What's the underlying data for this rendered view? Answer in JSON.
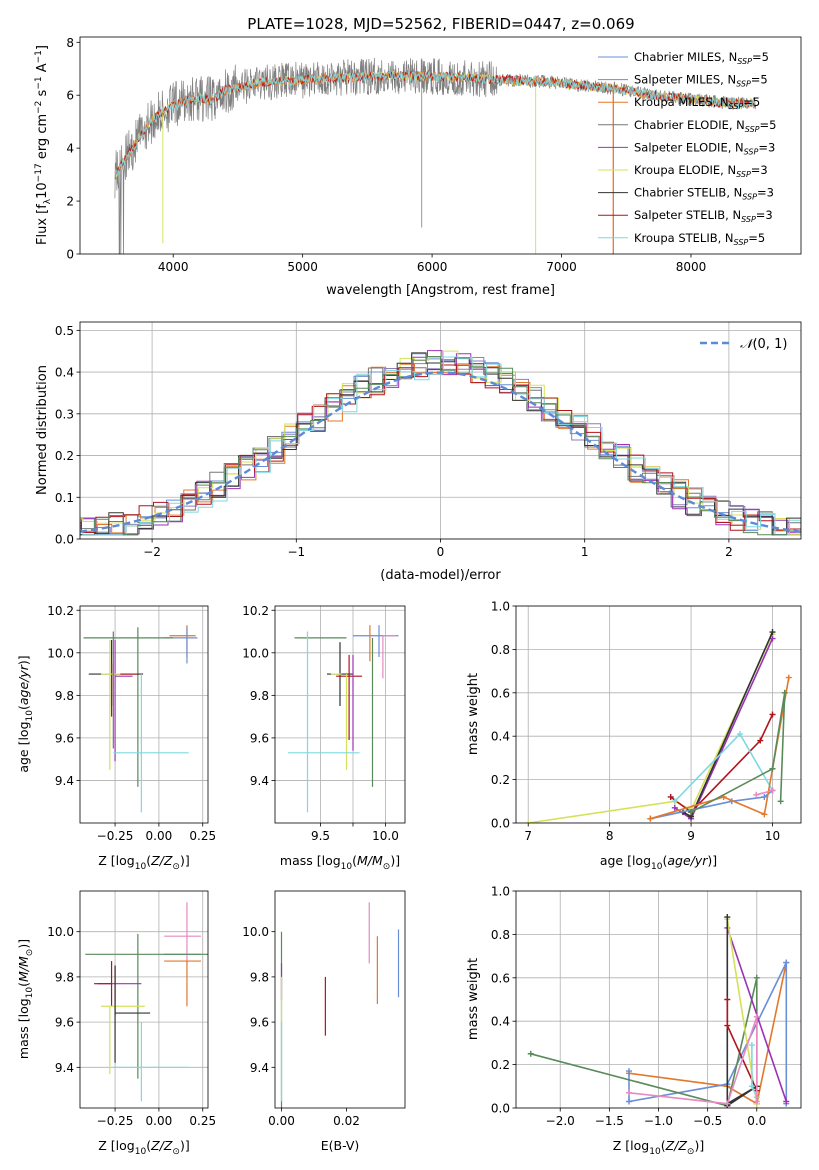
{
  "figure": {
    "title": "PLATE=1028, MJD=52562, FIBERID=0447, z=0.069"
  },
  "model_colors": {
    "Chabrier MILES": "#6a8fd8",
    "Salpeter MILES": "#8d7fb8",
    "Kroupa MILES": "#e3782b",
    "Chabrier ELODIE": "#777777",
    "Salpeter ELODIE": "#9b32b5",
    "Kroupa ELODIE": "#d4e25a",
    "Chabrier STELIB": "#333333",
    "Salpeter STELIB": "#b0141c",
    "Kroupa STELIB": "#7fd8e2",
    "extra_green": "#5a8a5a",
    "extra_pink": "#e889c0"
  },
  "chart_data": [
    {
      "id": "spectrum",
      "type": "line",
      "ylabel_main": "Flux [f",
      "ylabel_tail": "10",
      "ylabel_unit": " erg cm",
      "ylabel_unit2": " s",
      "ylabel_unit3": " A",
      "xlabel": "wavelength [Angstrom, rest frame]",
      "xlim": [
        3280,
        8850
      ],
      "ylim": [
        0,
        8.2
      ],
      "xticks": [
        "4000",
        "5000",
        "6000",
        "7000",
        "8000"
      ],
      "yticks": [
        "0",
        "2",
        "4",
        "6",
        "8"
      ],
      "continuum": {
        "x": [
          3550,
          3620,
          3700,
          3800,
          3900,
          4000,
          4100,
          4200,
          4300,
          4400,
          4500,
          4700,
          4900,
          5100,
          5300,
          5500,
          5700,
          5900,
          6100,
          6300,
          6500,
          6700,
          6900,
          7100,
          7300,
          7500,
          7700,
          7900,
          8100,
          8300,
          8500
        ],
        "y": [
          3.0,
          3.5,
          4.1,
          4.9,
          5.3,
          5.6,
          5.8,
          5.9,
          5.8,
          6.2,
          6.3,
          6.5,
          6.55,
          6.6,
          6.65,
          6.7,
          6.75,
          6.7,
          6.7,
          6.65,
          6.6,
          6.55,
          6.5,
          6.4,
          6.3,
          6.2,
          6.0,
          5.9,
          5.8,
          5.7,
          5.7
        ]
      },
      "legend": [
        {
          "imf": "Chabrier",
          "lib": "MILES",
          "n": "5"
        },
        {
          "imf": "Salpeter",
          "lib": "MILES",
          "n": "5"
        },
        {
          "imf": "Kroupa",
          "lib": "MILES",
          "n": "5"
        },
        {
          "imf": "Chabrier",
          "lib": "ELODIE",
          "n": "5"
        },
        {
          "imf": "Salpeter",
          "lib": "ELODIE",
          "n": "3"
        },
        {
          "imf": "Kroupa",
          "lib": "ELODIE",
          "n": "3"
        },
        {
          "imf": "Chabrier",
          "lib": "STELIB",
          "n": "3"
        },
        {
          "imf": "Salpeter",
          "lib": "STELIB",
          "n": "3"
        },
        {
          "imf": "Kroupa",
          "lib": "STELIB",
          "n": "5"
        }
      ],
      "legend_placement": "upper right"
    },
    {
      "id": "residuals",
      "type": "histogram",
      "xlabel": "(data-model)/error",
      "ylabel": "Normed distribution",
      "xlim": [
        -2.5,
        2.5
      ],
      "ylim": [
        0,
        0.52
      ],
      "xticks": [
        "−2",
        "−1",
        "0",
        "1",
        "2"
      ],
      "yticks": [
        "0.0",
        "0.1",
        "0.2",
        "0.3",
        "0.4",
        "0.5"
      ],
      "grid": true,
      "reference_label": "N(0, 1)",
      "legend_placement": "upper right"
    },
    {
      "id": "age_vs_Z",
      "type": "errorbar",
      "xlabel": "Z [log",
      "ylabel": "age  [log",
      "xlim": [
        -0.45,
        0.28
      ],
      "ylim": [
        9.2,
        10.22
      ],
      "xticks": [
        "−0.25",
        "0.00",
        "0.25"
      ],
      "yticks": [
        "9.4",
        "9.6",
        "9.8",
        "10.0",
        "10.2"
      ],
      "points": [
        {
          "x": 0.16,
          "xerr": [
            0.1,
            0.05
          ],
          "y": 10.08,
          "yerr": [
            0.1,
            0.05
          ],
          "c": "Kroupa MILES"
        },
        {
          "x": 0.16,
          "xerr": [
            0.13,
            0.06
          ],
          "y": 10.07,
          "yerr": [
            0.12,
            0.05
          ],
          "c": "Chabrier MILES"
        },
        {
          "x": -0.12,
          "xerr": [
            0.31,
            0.2
          ],
          "y": 10.07,
          "yerr": [
            0.7,
            0.05
          ],
          "c": "extra_green"
        },
        {
          "x": -0.27,
          "xerr": [
            0.13,
            0.18
          ],
          "y": 9.9,
          "yerr": [
            0.15,
            0.16
          ],
          "c": "Chabrier STELIB"
        },
        {
          "x": -0.27,
          "xerr": [
            0.0,
            0.15
          ],
          "y": 9.9,
          "yerr": [
            0.2,
            0.05
          ],
          "c": "Salpeter STELIB"
        },
        {
          "x": -0.25,
          "xerr": [
            0.0,
            0.1
          ],
          "y": 9.89,
          "yerr": [
            0.4,
            0.17
          ],
          "c": "Salpeter ELODIE"
        },
        {
          "x": -0.28,
          "xerr": [
            0.05,
            0.06
          ],
          "y": 9.9,
          "yerr": [
            0.45,
            0.16
          ],
          "c": "Kroupa ELODIE"
        },
        {
          "x": -0.26,
          "xerr": [
            0.0,
            0.0
          ],
          "y": 9.9,
          "yerr": [
            0.35,
            0.2
          ],
          "c": "Chabrier ELODIE"
        },
        {
          "x": -0.26,
          "xerr": [
            0.0,
            0.43
          ],
          "y": 9.53,
          "yerr": [
            0.0,
            0.0
          ],
          "c": "Kroupa STELIB"
        },
        {
          "x": -0.1,
          "xerr": [
            0.0,
            0.0
          ],
          "y": 9.9,
          "yerr": [
            0.65,
            0.0
          ],
          "c": "Kroupa STELIB"
        }
      ]
    },
    {
      "id": "age_vs_mass",
      "type": "errorbar",
      "xlabel": "mass [log",
      "ylim": [
        9.2,
        10.22
      ],
      "xlim": [
        9.15,
        10.15
      ],
      "xticks": [
        "9.5",
        "9.75",
        "10.0"
      ],
      "xtick_labels": [
        "9.5",
        "",
        "10.0"
      ],
      "yticks": [
        "9.4",
        "9.6",
        "9.8",
        "10.0",
        "10.2"
      ],
      "points": [
        {
          "x": 9.95,
          "xerr": [
            0.2,
            0.15
          ],
          "y": 10.08,
          "yerr": [
            0.1,
            0.05
          ],
          "c": "Chabrier MILES"
        },
        {
          "x": 9.98,
          "xerr": [
            0.0,
            0.1
          ],
          "y": 10.08,
          "yerr": [
            0.2,
            0.0
          ],
          "c": "extra_pink"
        },
        {
          "x": 9.88,
          "xerr": [
            0.0,
            0.0
          ],
          "y": 10.08,
          "yerr": [
            0.12,
            0.05
          ],
          "c": "Kroupa MILES"
        },
        {
          "x": 9.7,
          "xerr": [
            0.4,
            0.0
          ],
          "y": 10.07,
          "yerr": [
            0.0,
            0.0
          ],
          "c": "extra_green"
        },
        {
          "x": 9.9,
          "xerr": [
            0.0,
            0.0
          ],
          "y": 10.07,
          "yerr": [
            0.7,
            0.0
          ],
          "c": "extra_green"
        },
        {
          "x": 9.65,
          "xerr": [
            0.1,
            0.1
          ],
          "y": 9.9,
          "yerr": [
            0.15,
            0.15
          ],
          "c": "Chabrier STELIB"
        },
        {
          "x": 9.72,
          "xerr": [
            0.1,
            0.1
          ],
          "y": 9.89,
          "yerr": [
            0.3,
            0.1
          ],
          "c": "Salpeter STELIB"
        },
        {
          "x": 9.75,
          "xerr": [
            0.0,
            0.0
          ],
          "y": 9.89,
          "yerr": [
            0.35,
            0.1
          ],
          "c": "Salpeter ELODIE"
        },
        {
          "x": 9.58,
          "xerr": [
            0.0,
            0.08
          ],
          "y": 9.9,
          "yerr": [
            0.0,
            0.0
          ],
          "c": "Kroupa ELODIE"
        },
        {
          "x": 9.7,
          "xerr": [
            0.0,
            0.0
          ],
          "y": 9.9,
          "yerr": [
            0.45,
            0.0
          ],
          "c": "Kroupa ELODIE"
        },
        {
          "x": 9.4,
          "xerr": [
            0.15,
            0.4
          ],
          "y": 9.53,
          "yerr": [
            0.28,
            0.57
          ],
          "c": "Kroupa STELIB"
        }
      ]
    },
    {
      "id": "massweight_vs_age",
      "type": "line",
      "xlabel": "age  [log",
      "ylabel": "mass weight",
      "xlim": [
        6.85,
        10.35
      ],
      "ylim": [
        0,
        1
      ],
      "xticks": [
        "7",
        "8",
        "9",
        "10"
      ],
      "yticks": [
        "0.0",
        "0.2",
        "0.4",
        "0.6",
        "0.8",
        "1.0"
      ],
      "grid": true,
      "series": [
        {
          "c": "Kroupa ELODIE",
          "x": [
            7.0,
            8.8,
            9.0,
            10.0
          ],
          "y": [
            0.0,
            0.1,
            0.06,
            0.87
          ]
        },
        {
          "c": "Salpeter ELODIE",
          "x": [
            8.8,
            9.0,
            10.0
          ],
          "y": [
            0.07,
            0.02,
            0.85
          ]
        },
        {
          "c": "Chabrier STELIB",
          "x": [
            8.9,
            9.0,
            10.0
          ],
          "y": [
            0.05,
            0.03,
            0.88
          ]
        },
        {
          "c": "Salpeter STELIB",
          "x": [
            8.75,
            9.0,
            9.85,
            10.0
          ],
          "y": [
            0.12,
            0.05,
            0.38,
            0.5
          ]
        },
        {
          "c": "Kroupa STELIB",
          "x": [
            8.8,
            9.6,
            10.0
          ],
          "y": [
            0.1,
            0.41,
            0.15
          ]
        },
        {
          "c": "Chabrier MILES",
          "x": [
            8.5,
            9.5,
            9.9,
            10.0
          ],
          "y": [
            0.02,
            0.1,
            0.12,
            0.15
          ]
        },
        {
          "c": "Kroupa MILES",
          "x": [
            8.5,
            9.4,
            9.9,
            10.2
          ],
          "y": [
            0.02,
            0.12,
            0.04,
            0.67
          ]
        },
        {
          "c": "extra_pink",
          "x": [
            9.8,
            10.0
          ],
          "y": [
            0.13,
            0.15
          ]
        },
        {
          "c": "extra_green",
          "x": [
            9.0,
            10.0,
            10.15,
            10.1
          ],
          "y": [
            0.05,
            0.25,
            0.6,
            0.1
          ]
        }
      ]
    },
    {
      "id": "mass_vs_Z",
      "type": "errorbar",
      "xlabel": "Z [log",
      "ylabel": "mass [log",
      "xlim": [
        -0.45,
        0.28
      ],
      "ylim": [
        9.22,
        10.18
      ],
      "xticks": [
        "−0.25",
        "0.00",
        "0.25"
      ],
      "yticks": [
        "9.4",
        "9.6",
        "9.8",
        "10.0"
      ],
      "points": [
        {
          "x": 0.16,
          "xerr": [
            0.0,
            0.0
          ],
          "y": 9.98,
          "yerr": [
            0.12,
            0.15
          ],
          "c": "extra_pink"
        },
        {
          "x": 0.16,
          "xerr": [
            0.13,
            0.08
          ],
          "y": 9.98,
          "yerr": [
            0.0,
            0.0
          ],
          "c": "extra_pink"
        },
        {
          "x": 0.16,
          "xerr": [
            0.13,
            0.08
          ],
          "y": 9.9,
          "yerr": [
            0.0,
            0.0
          ],
          "c": "Chabrier MILES"
        },
        {
          "x": 0.16,
          "xerr": [
            0.13,
            0.08
          ],
          "y": 9.87,
          "yerr": [
            0.2,
            0.0
          ],
          "c": "Kroupa MILES"
        },
        {
          "x": -0.12,
          "xerr": [
            0.3,
            0.4
          ],
          "y": 9.9,
          "yerr": [
            0.55,
            0.09
          ],
          "c": "extra_green"
        },
        {
          "x": -0.25,
          "xerr": [
            0.1,
            0.15
          ],
          "y": 9.77,
          "yerr": [
            0.14,
            0.08
          ],
          "c": "Salpeter ELODIE"
        },
        {
          "x": -0.27,
          "xerr": [
            0.1,
            0.0
          ],
          "y": 9.77,
          "yerr": [
            0.1,
            0.1
          ],
          "c": "Salpeter STELIB"
        },
        {
          "x": -0.28,
          "xerr": [
            0.05,
            0.2
          ],
          "y": 9.67,
          "yerr": [
            0.3,
            0.0
          ],
          "c": "Kroupa ELODIE"
        },
        {
          "x": -0.25,
          "xerr": [
            0.0,
            0.2
          ],
          "y": 9.64,
          "yerr": [
            0.22,
            0.21
          ],
          "c": "Chabrier STELIB"
        },
        {
          "x": -0.26,
          "xerr": [
            0.0,
            0.43
          ],
          "y": 9.4,
          "yerr": [
            0.0,
            0.0
          ],
          "c": "Kroupa STELIB"
        },
        {
          "x": -0.1,
          "xerr": [
            0.0,
            0.0
          ],
          "y": 9.6,
          "yerr": [
            0.35,
            0.0
          ],
          "c": "Kroupa STELIB"
        }
      ]
    },
    {
      "id": "mass_vs_ebv",
      "type": "errorbar",
      "xlabel": "E(B-V)",
      "xlim": [
        -0.002,
        0.038
      ],
      "ylim": [
        9.22,
        10.18
      ],
      "xticks": [
        "0.00",
        "0.02"
      ],
      "yticks": [
        "9.4",
        "9.6",
        "9.8",
        "10.0"
      ],
      "points": [
        {
          "x": 0.0,
          "xerr": [
            0,
            0
          ],
          "y": 9.8,
          "yerr": [
            0.6,
            0.2
          ],
          "c": "extra_green"
        },
        {
          "x": 0.0,
          "xerr": [
            0,
            0
          ],
          "y": 9.8,
          "yerr": [
            0.1,
            0.06
          ],
          "c": "Salpeter ELODIE"
        },
        {
          "x": 0.0,
          "xerr": [
            0,
            0
          ],
          "y": 9.55,
          "yerr": [
            0.3,
            0.05
          ],
          "c": "Kroupa STELIB"
        },
        {
          "x": 0.0,
          "xerr": [
            0,
            0
          ],
          "y": 9.7,
          "yerr": [
            0.1,
            0.1
          ],
          "c": "Kroupa ELODIE"
        },
        {
          "x": 0.0135,
          "xerr": [
            0,
            0
          ],
          "y": 9.67,
          "yerr": [
            0.13,
            0.13
          ],
          "c": "Salpeter STELIB"
        },
        {
          "x": 0.027,
          "xerr": [
            0,
            0
          ],
          "y": 9.98,
          "yerr": [
            0.12,
            0.15
          ],
          "c": "extra_pink"
        },
        {
          "x": 0.0295,
          "xerr": [
            0,
            0
          ],
          "y": 9.83,
          "yerr": [
            0.15,
            0.15
          ],
          "c": "Kroupa MILES"
        },
        {
          "x": 0.036,
          "xerr": [
            0,
            0
          ],
          "y": 9.86,
          "yerr": [
            0.15,
            0.15
          ],
          "c": "Chabrier MILES"
        }
      ]
    },
    {
      "id": "massweight_vs_Z",
      "type": "line",
      "xlabel": "Z [log",
      "ylabel": "mass weight",
      "xlim": [
        -2.45,
        0.45
      ],
      "ylim": [
        0,
        1
      ],
      "xticks": [
        "−2.0",
        "−1.5",
        "−1.0",
        "−0.5",
        "0.0"
      ],
      "yticks": [
        "0.0",
        "0.2",
        "0.4",
        "0.6",
        "0.8",
        "1.0"
      ],
      "grid": true,
      "series": [
        {
          "c": "Kroupa MILES",
          "x": [
            -1.3,
            -0.3,
            0.0,
            0.3
          ],
          "y": [
            0.16,
            0.1,
            0.02,
            0.67
          ]
        },
        {
          "c": "Chabrier MILES",
          "x": [
            -1.3,
            -1.3,
            -0.3,
            0.3,
            0.3
          ],
          "y": [
            0.17,
            0.03,
            0.11,
            0.67,
            0.02
          ]
        },
        {
          "c": "extra_green",
          "x": [
            -2.3,
            -0.3,
            0.0,
            0.0
          ],
          "y": [
            0.25,
            0.01,
            0.6,
            0.02
          ]
        },
        {
          "c": "Salpeter ELODIE",
          "x": [
            -0.3,
            0.3
          ],
          "y": [
            0.83,
            0.03
          ]
        },
        {
          "c": "Kroupa ELODIE",
          "x": [
            -0.3,
            0.0
          ],
          "y": [
            0.87,
            0.02
          ]
        },
        {
          "c": "Chabrier STELIB",
          "x": [
            -0.3,
            -0.3,
            0.0,
            -0.3
          ],
          "y": [
            0.88,
            0.01,
            0.1,
            0.02
          ]
        },
        {
          "c": "Salpeter STELIB",
          "x": [
            -0.3,
            -0.3,
            0.0
          ],
          "y": [
            0.5,
            0.38,
            0.08
          ]
        },
        {
          "c": "Kroupa STELIB",
          "x": [
            -0.05,
            -0.05,
            0.0
          ],
          "y": [
            0.29,
            0.1,
            0.05
          ]
        },
        {
          "c": "extra_pink",
          "x": [
            -1.3,
            -0.3,
            0.0,
            0.0
          ],
          "y": [
            0.07,
            0.02,
            0.42,
            0.03
          ]
        }
      ]
    }
  ]
}
